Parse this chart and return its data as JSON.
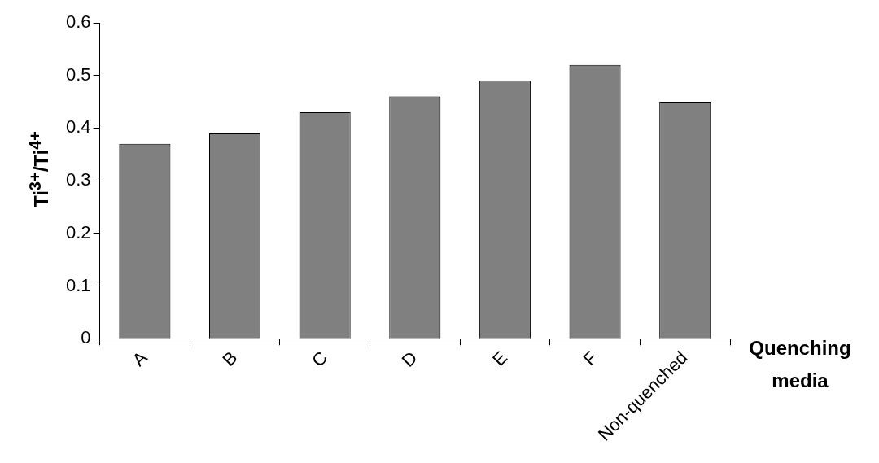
{
  "chart_data": {
    "type": "bar",
    "xlabel": "Quenching media",
    "ylabel": "Ti$^{3+}$/Ti$^{4+}$",
    "categories": [
      "A",
      "B",
      "C",
      "D",
      "E",
      "F",
      "Non-quenched"
    ],
    "values": [
      0.37,
      0.39,
      0.43,
      0.46,
      0.49,
      0.52,
      0.45
    ],
    "color": "#808080",
    "ylim": [
      0,
      0.6
    ],
    "yticks": [
      0,
      0.1,
      0.2,
      0.3,
      0.4,
      0.5,
      0.6
    ],
    "grid": false,
    "legend": false
  }
}
